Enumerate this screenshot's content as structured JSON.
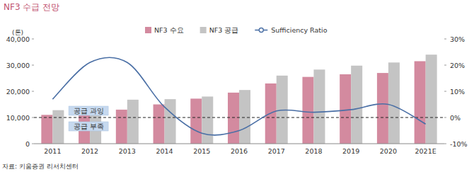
{
  "chart_data": {
    "type": "bar",
    "title": "NF3 수급 전망",
    "y_label": "(톤)",
    "source": "자료: 키움증권 리서치센터",
    "categories": [
      "2011",
      "2012",
      "2013",
      "2014",
      "2015",
      "2016",
      "2017",
      "2018",
      "2019",
      "2020",
      "2021E"
    ],
    "series": [
      {
        "name": "NF3 수요",
        "type": "bar",
        "color": "#d38a9f",
        "values": [
          11000,
          11500,
          13000,
          15000,
          17200,
          19500,
          23000,
          25500,
          26500,
          27000,
          31500
        ]
      },
      {
        "name": "NF3 공급",
        "type": "bar",
        "color": "#c4c4c4",
        "values": [
          12800,
          13900,
          16800,
          17000,
          18000,
          20500,
          26000,
          28300,
          29800,
          31000,
          34000
        ]
      },
      {
        "name": "Sufficiency Ratio",
        "type": "line",
        "axis": "y2",
        "color": "#4a6fa5",
        "values": [
          7,
          21,
          21,
          4,
          -6,
          -5,
          2.5,
          2,
          3,
          5,
          -2.5
        ]
      }
    ],
    "ylim": [
      0,
      40000
    ],
    "yticks": [
      0,
      {
        "value": 10000,
        "label": "10,000"
      },
      {
        "value": 20000,
        "label": "20,000"
      },
      {
        "value": 30000,
        "label": "30,000"
      },
      {
        "value": 40000,
        "label": "40,000"
      }
    ],
    "y2lim": [
      -10,
      30
    ],
    "y2ticks": [
      {
        "value": -10,
        "label": "-10%"
      },
      {
        "value": 0,
        "label": "0%"
      },
      {
        "value": 10,
        "label": "10%"
      },
      {
        "value": 20,
        "label": "20%"
      },
      {
        "value": 30,
        "label": "30%"
      }
    ],
    "annotations": [
      {
        "text": "공급 과잉"
      },
      {
        "text": "공급 부족"
      }
    ],
    "reference_line": {
      "axis": "y2",
      "value": 0,
      "line_style": "dashed"
    },
    "grid": false,
    "legend": "top"
  }
}
